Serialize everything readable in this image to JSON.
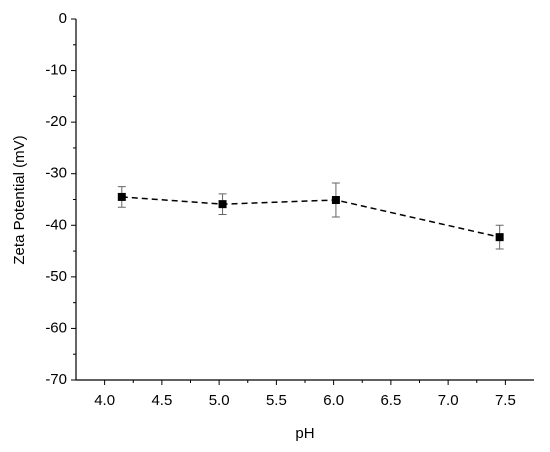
{
  "chart_data": {
    "type": "line",
    "x_label": "pH",
    "y_label": "Zeta Potential (mV)",
    "x": [
      4.15,
      5.03,
      6.02,
      7.45
    ],
    "values": [
      -34.5,
      -35.9,
      -35.1,
      -42.3
    ],
    "errors": [
      2.0,
      2.0,
      3.3,
      2.3
    ],
    "color": "#000000",
    "line_style": "dashed",
    "marker": "square",
    "xlim": [
      3.75,
      7.75
    ],
    "xticks": [
      {
        "value": 4.0,
        "label": "4.0"
      },
      {
        "value": 4.5,
        "label": "4.5"
      },
      {
        "value": 5.0,
        "label": "5.0"
      },
      {
        "value": 5.5,
        "label": "5.5"
      },
      {
        "value": 6.0,
        "label": "6.0"
      },
      {
        "value": 6.5,
        "label": "6.5"
      },
      {
        "value": 7.0,
        "label": "7.0"
      },
      {
        "value": 7.5,
        "label": "7.5"
      }
    ],
    "ylim": [
      -70,
      0
    ],
    "yticks": [
      0,
      -10,
      -20,
      -30,
      -40,
      -50,
      -60,
      -70
    ],
    "grid": false
  }
}
